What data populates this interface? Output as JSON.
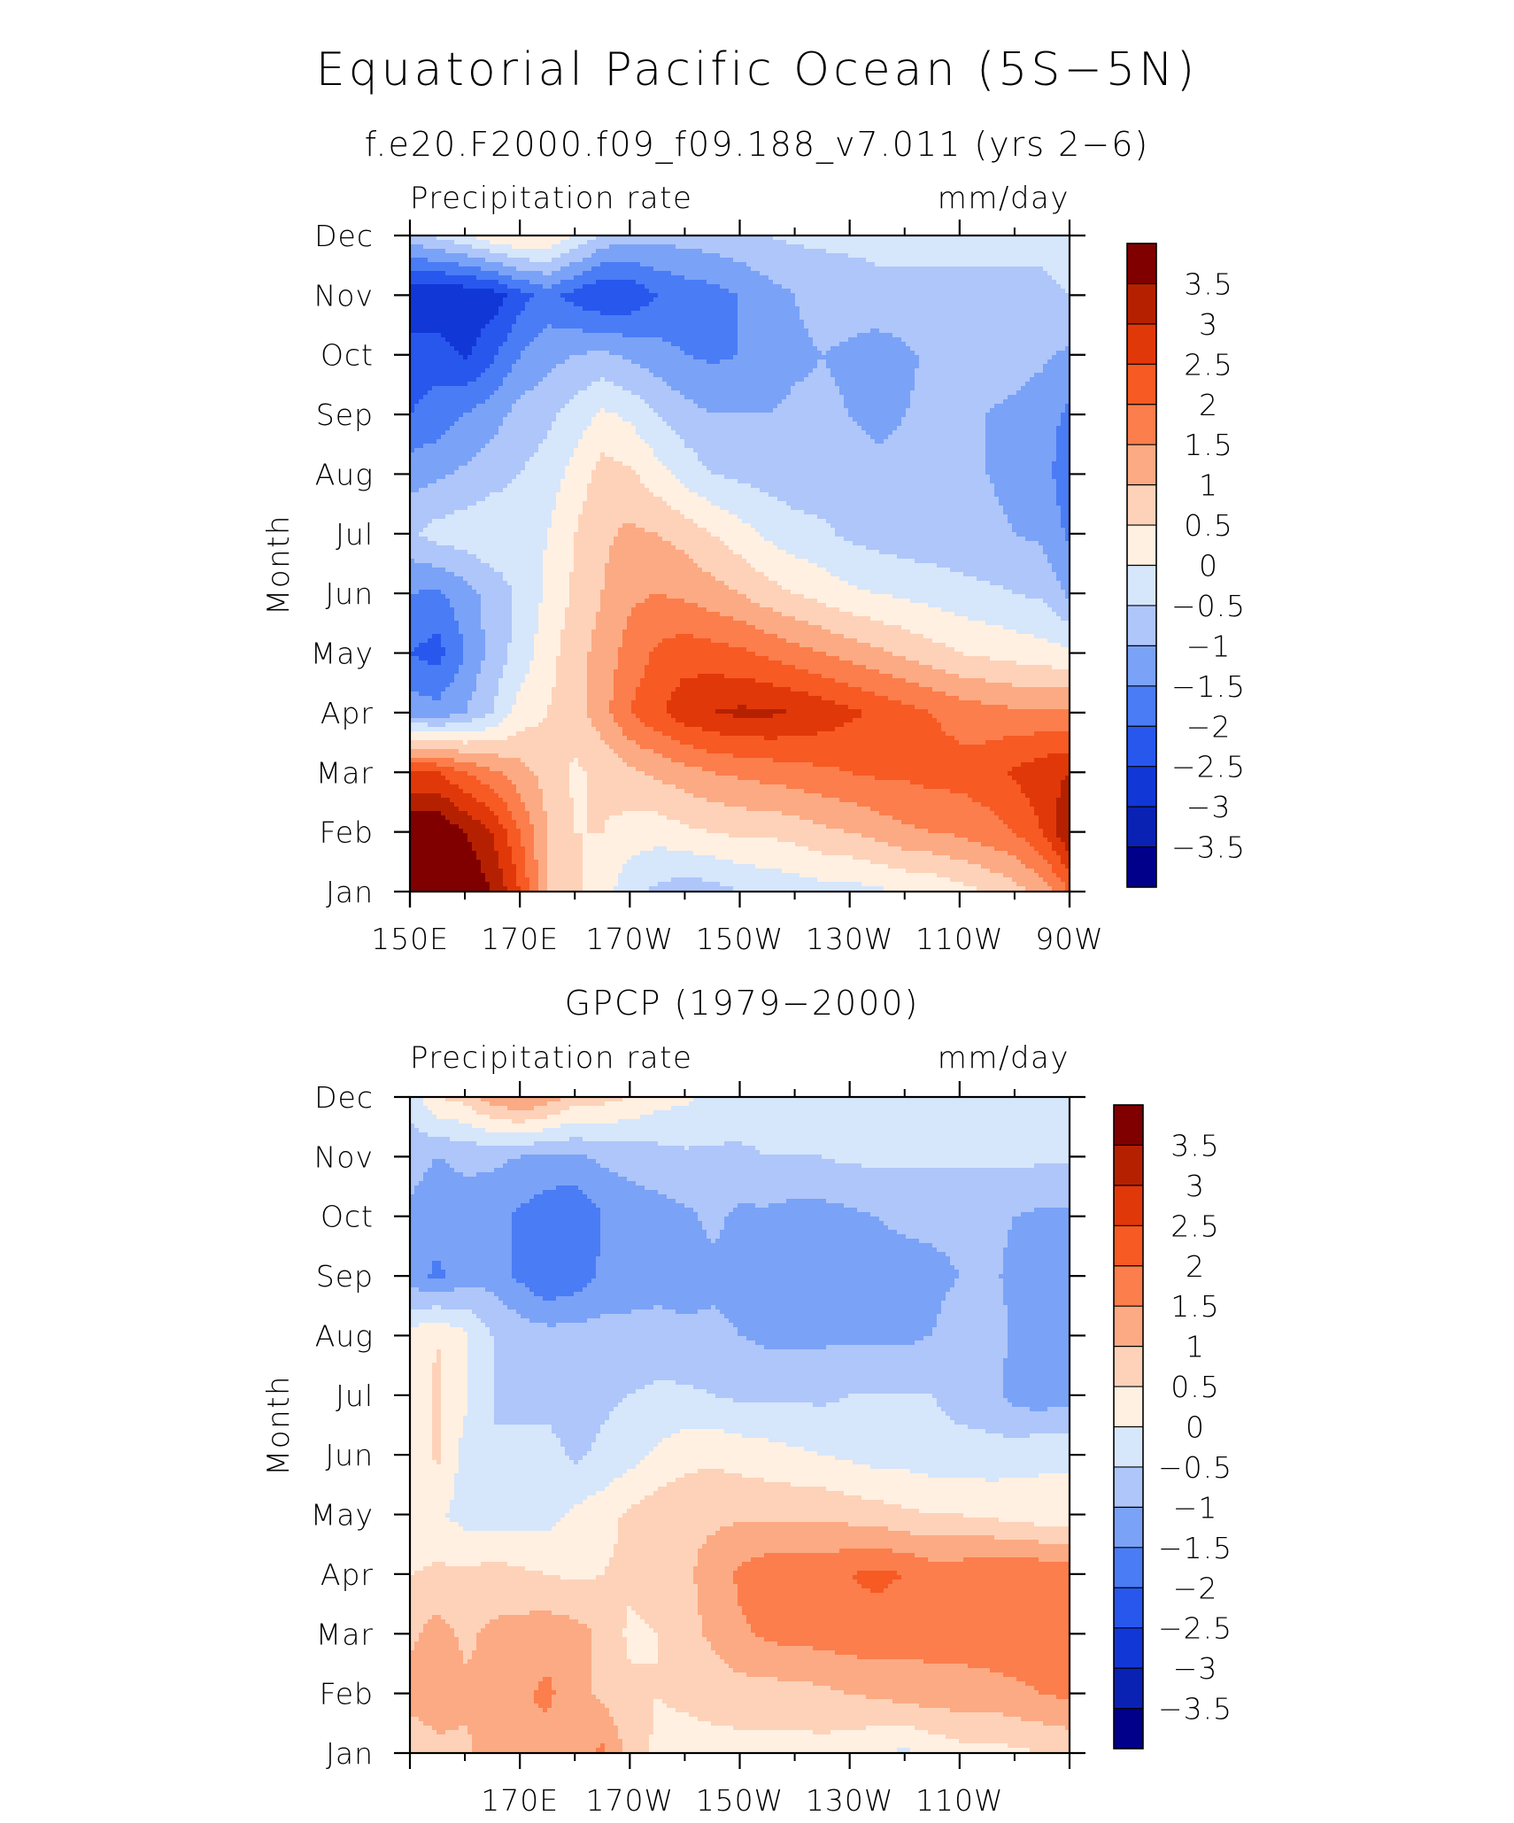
{
  "figure": {
    "title": "Equatorial Pacific Ocean (5S−5N)"
  },
  "palette": [
    "#00008b",
    "#0a22b4",
    "#1237d7",
    "#2857ee",
    "#4a7cf5",
    "#7aa2f7",
    "#aec6f9",
    "#d6e6fb",
    "#fff0e2",
    "#fdd2b9",
    "#fcaa83",
    "#fb7e4c",
    "#f75a23",
    "#e13809",
    "#b52100",
    "#800000"
  ],
  "chart_data": [
    {
      "type": "heatmap",
      "title": "f.e20.F2000.f09_f09.188_v7.011 (yrs 2−6)",
      "left_label": "Precipitation rate",
      "right_label": "mm/day",
      "ylabel": "Month",
      "xlabel": "",
      "xlim": [
        150,
        270
      ],
      "x_unit": "degrees_east",
      "x_ticks": [
        {
          "value": 150,
          "label": "150E"
        },
        {
          "value": 170,
          "label": "170E"
        },
        {
          "value": 190,
          "label": "170W"
        },
        {
          "value": 210,
          "label": "150W"
        },
        {
          "value": 230,
          "label": "130W"
        },
        {
          "value": 250,
          "label": "110W"
        },
        {
          "value": 270,
          "label": "90W"
        }
      ],
      "y_ticks": [
        "Jan",
        "Feb",
        "Mar",
        "Apr",
        "May",
        "Jun",
        "Jul",
        "Aug",
        "Sep",
        "Oct",
        "Nov",
        "Dec"
      ],
      "colorbar": {
        "levels": [
          -3.5,
          -3,
          -2.5,
          -2,
          -1.5,
          -1,
          -0.5,
          0,
          0.5,
          1,
          1.5,
          2,
          2.5,
          3,
          3.5
        ],
        "labels": [
          "−3.5",
          "−3",
          "−2.5",
          "−2",
          "−1.5",
          "−1",
          "−0.5",
          "0",
          "0.5",
          "1",
          "1.5",
          "2",
          "2.5",
          "3",
          "3.5"
        ]
      },
      "x": [
        150,
        155,
        160,
        165,
        170,
        175,
        180,
        185,
        190,
        195,
        200,
        205,
        210,
        215,
        220,
        225,
        230,
        235,
        240,
        245,
        250,
        255,
        260,
        265,
        270
      ],
      "rows": [
        [
          4,
          4,
          4,
          3.5,
          2.5,
          1,
          0.6,
          0.3,
          -0.4,
          -0.6,
          -0.8,
          -0.7,
          -0.5,
          -0.4,
          -0.3,
          -0.2,
          -0.2,
          -0.1,
          0,
          0.1,
          0.3,
          0.5,
          0.8,
          1.2,
          2
        ],
        [
          4,
          4,
          3.5,
          3,
          2,
          1,
          0.5,
          0.5,
          0.3,
          0.2,
          0.4,
          0.5,
          0.6,
          0.6,
          0.7,
          0.9,
          1,
          1.2,
          1.4,
          1.5,
          1.6,
          1.8,
          2,
          2.5,
          3.5
        ],
        [
          2.5,
          2.5,
          2,
          1.6,
          1.2,
          0.8,
          0.4,
          0.6,
          0.9,
          1.1,
          1.3,
          1.5,
          1.6,
          1.7,
          1.8,
          1.9,
          2,
          2.1,
          2.1,
          2.2,
          2.2,
          2.3,
          2.6,
          2.8,
          3
        ],
        [
          -1.2,
          -1.3,
          -1,
          -0.5,
          0.2,
          0.5,
          0.8,
          1.3,
          2,
          2.4,
          2.8,
          3,
          3.1,
          3.1,
          3,
          2.8,
          2.6,
          2.4,
          2.2,
          2,
          1.8,
          1.7,
          1.6,
          1.6,
          1.6
        ],
        [
          -2,
          -2.2,
          -1.5,
          -0.8,
          -0.3,
          0.3,
          0.8,
          1.2,
          1.7,
          2.1,
          2.3,
          2.2,
          2.1,
          1.9,
          1.7,
          1.5,
          1.3,
          1.1,
          0.9,
          0.7,
          0.5,
          0.4,
          0.3,
          0.2,
          0.1
        ],
        [
          -1.5,
          -1.6,
          -1.2,
          -0.8,
          -0.4,
          0.1,
          0.6,
          1,
          1.4,
          1.5,
          1.4,
          1.2,
          1,
          0.7,
          0.5,
          0.3,
          0.1,
          0,
          -0.1,
          -0.2,
          -0.3,
          -0.4,
          -0.5,
          -0.6,
          -1.1
        ],
        [
          -0.6,
          -0.3,
          -0.2,
          -0.1,
          -0.2,
          0,
          0.5,
          0.9,
          1.1,
          1,
          0.8,
          0.5,
          0.2,
          -0.1,
          -0.3,
          -0.4,
          -0.6,
          -0.7,
          -0.8,
          -0.8,
          -0.9,
          -0.9,
          -1,
          -1.1,
          -1.6
        ],
        [
          -1.2,
          -1.1,
          -0.9,
          -0.7,
          -0.5,
          -0.3,
          0.2,
          0.7,
          0.6,
          0.2,
          -0.2,
          -0.5,
          -0.6,
          -0.7,
          -0.8,
          -0.8,
          -0.8,
          -0.9,
          -0.9,
          -0.9,
          -1,
          -1,
          -1.1,
          -1.3,
          -1.8
        ],
        [
          -2,
          -1.8,
          -1.5,
          -1.2,
          -0.8,
          -0.6,
          -0.3,
          0.1,
          -0.1,
          -0.5,
          -0.8,
          -1,
          -1,
          -1,
          -0.9,
          -0.9,
          -1,
          -1.1,
          -1,
          -0.9,
          -0.9,
          -1,
          -1.1,
          -1.3,
          -1.6
        ],
        [
          -2.3,
          -2.2,
          -2.6,
          -2.1,
          -1.5,
          -1.2,
          -1,
          -0.9,
          -1.1,
          -1.3,
          -1.5,
          -1.6,
          -1.5,
          -1.3,
          -1.1,
          -1,
          -1.1,
          -1.3,
          -1.1,
          -0.9,
          -0.8,
          -0.8,
          -0.8,
          -0.9,
          -1.1
        ],
        [
          -2.8,
          -3,
          -2.9,
          -2.8,
          -2.2,
          -1.8,
          -2.2,
          -2.5,
          -2.4,
          -2,
          -1.8,
          -1.7,
          -1.5,
          -1.2,
          -1,
          -0.8,
          -0.7,
          -0.6,
          -0.6,
          -0.6,
          -0.6,
          -0.6,
          -0.6,
          -0.6,
          -0.5
        ],
        [
          -0.7,
          -0.4,
          -0.1,
          0.4,
          0.6,
          0.5,
          0,
          -0.6,
          -0.8,
          -0.8,
          -0.8,
          -0.7,
          -0.6,
          -0.5,
          -0.4,
          -0.4,
          -0.4,
          -0.4,
          -0.4,
          -0.4,
          -0.4,
          -0.4,
          -0.4,
          -0.4,
          -0.3
        ]
      ]
    },
    {
      "type": "heatmap",
      "title": "GPCP (1979−2000)",
      "left_label": "Precipitation rate",
      "right_label": "mm/day",
      "ylabel": "Month",
      "xlabel": "",
      "xlim": [
        150,
        270
      ],
      "x_unit": "degrees_east",
      "x_ticks": [
        {
          "value": 170,
          "label": "170E"
        },
        {
          "value": 190,
          "label": "170W"
        },
        {
          "value": 210,
          "label": "150W"
        },
        {
          "value": 230,
          "label": "130W"
        },
        {
          "value": 250,
          "label": "110W"
        }
      ],
      "y_ticks": [
        "Jan",
        "Feb",
        "Mar",
        "Apr",
        "May",
        "Jun",
        "Jul",
        "Aug",
        "Sep",
        "Oct",
        "Nov",
        "Dec"
      ],
      "colorbar": {
        "levels": [
          -3.5,
          -3,
          -2.5,
          -2,
          -1.5,
          -1,
          -0.5,
          0,
          0.5,
          1,
          1.5,
          2,
          2.5,
          3,
          3.5
        ],
        "labels": [
          "−3.5",
          "−3",
          "−2.5",
          "−2",
          "−1.5",
          "−1",
          "−0.5",
          "0",
          "0.5",
          "1",
          "1.5",
          "2",
          "2.5",
          "3",
          "3.5"
        ]
      },
      "x": [
        150,
        155,
        160,
        165,
        170,
        175,
        180,
        185,
        190,
        195,
        200,
        205,
        210,
        215,
        220,
        225,
        230,
        235,
        240,
        245,
        250,
        255,
        260,
        265,
        270
      ],
      "rows": [
        [
          0.6,
          0.8,
          0.9,
          1.2,
          1.5,
          1.3,
          1.2,
          1.6,
          0.8,
          0.4,
          0.3,
          0.3,
          0.3,
          0.3,
          0.3,
          0.3,
          0.2,
          0,
          -0.1,
          0.1,
          0.3,
          0.3,
          0.4,
          0.5,
          0.6
        ],
        [
          1.2,
          1.4,
          1.1,
          1.1,
          1.4,
          1.6,
          1.2,
          0.9,
          0.6,
          0.5,
          0.6,
          0.7,
          0.8,
          0.8,
          0.8,
          0.9,
          1,
          1.1,
          1.2,
          1.3,
          1.3,
          1.3,
          1.4,
          1.5,
          1.6
        ],
        [
          0.9,
          1.2,
          0.9,
          1.1,
          1.2,
          1.3,
          1.2,
          0.9,
          0.4,
          0.5,
          0.8,
          1.1,
          1.4,
          1.6,
          1.7,
          1.7,
          1.8,
          1.8,
          1.7,
          1.7,
          1.7,
          1.8,
          1.8,
          1.8,
          1.8
        ],
        [
          0.5,
          0.6,
          0.6,
          0.7,
          0.6,
          0.5,
          0.4,
          0.5,
          0.6,
          0.8,
          0.9,
          1.2,
          1.6,
          1.8,
          1.8,
          1.8,
          2,
          2.1,
          2,
          1.8,
          1.8,
          2,
          2,
          1.9,
          1.8
        ],
        [
          0.1,
          0.1,
          -0.2,
          -0.3,
          -0.2,
          -0.2,
          0.1,
          0.3,
          0.6,
          0.8,
          0.9,
          0.9,
          0.9,
          0.9,
          0.9,
          0.9,
          0.8,
          0.7,
          0.6,
          0.5,
          0.5,
          0.4,
          0.3,
          0.2,
          0.2
        ],
        [
          0.1,
          0.6,
          -0.2,
          -0.5,
          -0.4,
          -0.3,
          -0.6,
          -0.4,
          -0.2,
          0.1,
          0.3,
          0.4,
          0.3,
          0.2,
          0.1,
          0,
          -0.1,
          -0.2,
          -0.2,
          -0.3,
          -0.3,
          -0.3,
          -0.2,
          -0.1,
          -0.1
        ],
        [
          0.1,
          0.6,
          0.1,
          -0.5,
          -0.6,
          -0.7,
          -0.7,
          -0.6,
          -0.5,
          -0.4,
          -0.4,
          -0.5,
          -0.6,
          -0.6,
          -0.6,
          -0.6,
          -0.5,
          -0.5,
          -0.5,
          -0.5,
          -0.7,
          -0.8,
          -1.2,
          -1.3,
          -1.2
        ],
        [
          0.2,
          0.5,
          0.1,
          -0.5,
          -0.7,
          -0.8,
          -0.8,
          -0.8,
          -0.8,
          -0.8,
          -0.9,
          -0.9,
          -1,
          -1.1,
          -1.1,
          -1.1,
          -1.1,
          -1.1,
          -1.1,
          -1,
          -0.8,
          -0.7,
          -1.1,
          -1.2,
          -1.1
        ],
        [
          -1.3,
          -1.6,
          -1.2,
          -1.2,
          -1.6,
          -2,
          -1.8,
          -1.4,
          -1.3,
          -1.2,
          -1.2,
          -1.1,
          -1.1,
          -1.2,
          -1.2,
          -1.3,
          -1.2,
          -1.2,
          -1.2,
          -1.1,
          -1,
          -0.9,
          -1.1,
          -1.3,
          -1.3
        ],
        [
          -1.1,
          -1.3,
          -1.2,
          -1.3,
          -1.6,
          -1.8,
          -2,
          -1.5,
          -1.3,
          -1.2,
          -1.1,
          -0.9,
          -1.1,
          -1.1,
          -1.2,
          -1.2,
          -1.1,
          -1,
          -0.9,
          -0.9,
          -0.9,
          -0.9,
          -1,
          -1.1,
          -1.1
        ],
        [
          -0.8,
          -1,
          -0.9,
          -0.9,
          -1,
          -1.1,
          -1.1,
          -0.9,
          -0.8,
          -0.7,
          -0.6,
          -0.6,
          -0.6,
          -0.5,
          -0.5,
          -0.5,
          -0.4,
          -0.4,
          -0.4,
          -0.4,
          -0.4,
          -0.4,
          -0.4,
          -0.4,
          -0.4
        ],
        [
          -0.3,
          0.5,
          0.7,
          1.3,
          1.6,
          1.3,
          0.8,
          0.7,
          0.5,
          0.2,
          0.1,
          -0.1,
          -0.2,
          -0.2,
          -0.2,
          -0.2,
          -0.3,
          -0.3,
          -0.3,
          -0.3,
          -0.3,
          -0.3,
          -0.3,
          -0.3,
          -0.3
        ]
      ]
    }
  ]
}
